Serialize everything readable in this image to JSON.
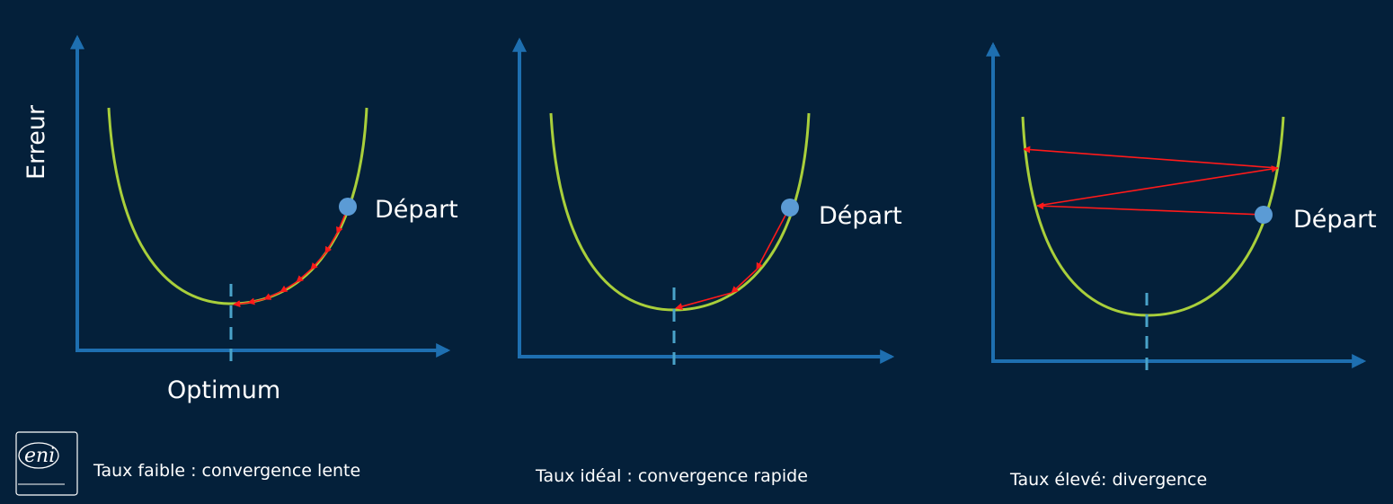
{
  "colors": {
    "background": "#04203a",
    "axis": "#1e6fb0",
    "curve": "#a9cf3b",
    "step": "#ff1a1a",
    "optimum_line": "#4aa3c9",
    "start_point": "#5b9bd5",
    "text": "#ffffff"
  },
  "panel_slow": {
    "y_label": "Erreur",
    "start_label": "Départ",
    "optimum_label": "Optimum",
    "caption": "Taux faible : convergence lente"
  },
  "panel_ideal": {
    "start_label": "Départ",
    "caption": "Taux idéal : convergence rapide"
  },
  "panel_diverge": {
    "start_label": "Départ",
    "caption": "Taux élevé: divergence"
  },
  "logo": {
    "text": "eni",
    "icon": "eni-logo-icon"
  }
}
